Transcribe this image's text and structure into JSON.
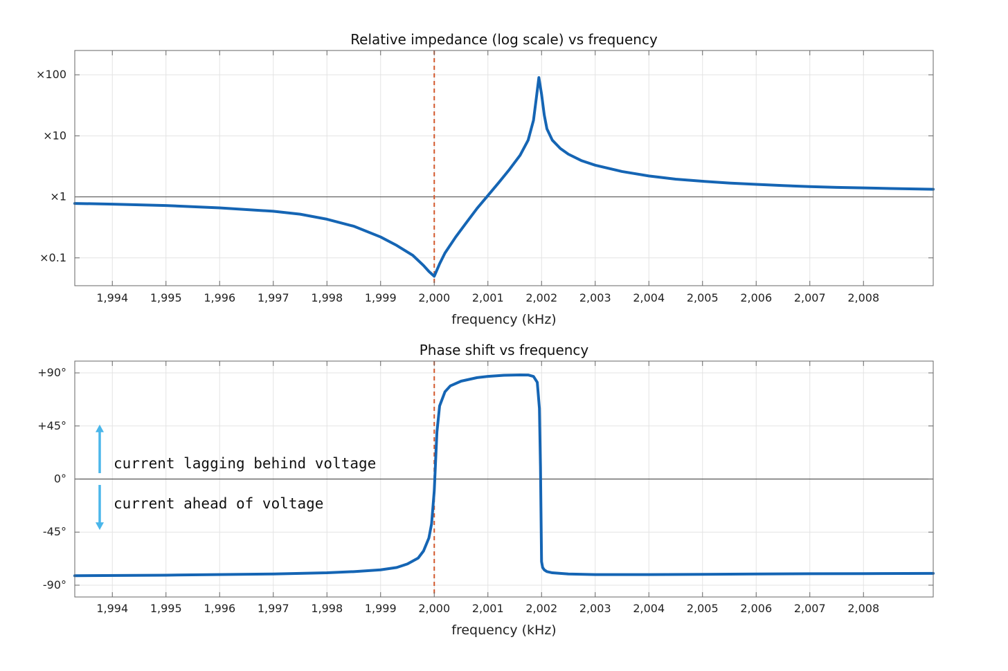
{
  "colors": {
    "series": "#1565b4",
    "reference_line": "#d2572a",
    "arrow": "#4ab6ea",
    "grid": "#e3e3e3",
    "zero_line": "#555555",
    "axes": "#666666"
  },
  "chart_data": [
    {
      "type": "line",
      "title": "Relative impedance (log scale) vs frequency",
      "xlabel": "frequency (kHz)",
      "ylabel": "",
      "y_scale": "log",
      "xlim": [
        1993.3,
        2009.3
      ],
      "ylim": [
        0.035,
        250
      ],
      "x_ticks": [
        1994,
        1995,
        1996,
        1997,
        1998,
        1999,
        2000,
        2001,
        2002,
        2003,
        2004,
        2005,
        2006,
        2007,
        2008
      ],
      "x_tick_labels": [
        "1,994",
        "1,995",
        "1,996",
        "1,997",
        "1,998",
        "1,999",
        "2,000",
        "2,001",
        "2,002",
        "2,003",
        "2,004",
        "2,005",
        "2,006",
        "2,007",
        "2,008"
      ],
      "y_ticks": [
        0.1,
        1,
        10,
        100
      ],
      "y_tick_labels": [
        "×0.1",
        "×1",
        "×10",
        "×100"
      ],
      "grid": true,
      "reference_x": 2000,
      "baseline_y": 1,
      "series": [
        {
          "x": [
            1993.3,
            1994,
            1995,
            1996,
            1997,
            1997.5,
            1998,
            1998.5,
            1999,
            1999.3,
            1999.6,
            1999.8,
            1999.9,
            2000,
            2000.1,
            2000.2,
            2000.4,
            2000.6,
            2000.8,
            2001,
            2001.2,
            2001.4,
            2001.6,
            2001.75,
            2001.85,
            2001.9,
            2001.95,
            2002,
            2002.05,
            2002.1,
            2002.2,
            2002.35,
            2002.5,
            2002.75,
            2003,
            2003.5,
            2004,
            2004.5,
            2005,
            2005.5,
            2006,
            2006.5,
            2007,
            2007.5,
            2008,
            2008.5,
            2009.3
          ],
          "y": [
            0.78,
            0.76,
            0.72,
            0.66,
            0.58,
            0.52,
            0.43,
            0.33,
            0.22,
            0.16,
            0.11,
            0.075,
            0.06,
            0.05,
            0.08,
            0.12,
            0.22,
            0.38,
            0.65,
            1.05,
            1.7,
            2.8,
            4.8,
            8.5,
            18,
            40,
            90,
            48,
            22,
            13,
            8.5,
            6.2,
            5.0,
            3.9,
            3.3,
            2.6,
            2.2,
            1.95,
            1.8,
            1.68,
            1.6,
            1.53,
            1.47,
            1.43,
            1.4,
            1.37,
            1.33
          ]
        }
      ]
    },
    {
      "type": "line",
      "title": "Phase shift vs frequency",
      "xlabel": "frequency (kHz)",
      "ylabel": "",
      "xlim": [
        1993.3,
        2009.3
      ],
      "ylim": [
        -100,
        100
      ],
      "x_ticks": [
        1994,
        1995,
        1996,
        1997,
        1998,
        1999,
        2000,
        2001,
        2002,
        2003,
        2004,
        2005,
        2006,
        2007,
        2008
      ],
      "x_tick_labels": [
        "1,994",
        "1,995",
        "1,996",
        "1,997",
        "1,998",
        "1,999",
        "2,000",
        "2,001",
        "2,002",
        "2,003",
        "2,004",
        "2,005",
        "2,006",
        "2,007",
        "2,008"
      ],
      "y_ticks": [
        -90,
        -45,
        0,
        45,
        90
      ],
      "y_tick_labels": [
        "-90°",
        "-45°",
        "0°",
        "+45°",
        "+90°"
      ],
      "grid": true,
      "reference_x": 2000,
      "baseline_y": 0,
      "annotations": [
        {
          "text": "current lagging behind voltage",
          "arrow": "up",
          "y_from": 5,
          "y_to": 45
        },
        {
          "text": "current ahead of voltage",
          "arrow": "down",
          "y_from": -5,
          "y_to": -42
        }
      ],
      "series": [
        {
          "x": [
            1993.3,
            1995,
            1997,
            1998,
            1998.5,
            1999,
            1999.3,
            1999.5,
            1999.7,
            1999.8,
            1999.9,
            1999.95,
            2000,
            2000.05,
            2000.1,
            2000.2,
            2000.3,
            2000.5,
            2000.8,
            2001,
            2001.3,
            2001.6,
            2001.75,
            2001.85,
            2001.92,
            2001.96,
            2001.98,
            2002,
            2002.02,
            2002.05,
            2002.1,
            2002.2,
            2002.5,
            2003,
            2004,
            2005,
            2006,
            2007,
            2008,
            2009.3
          ],
          "y": [
            -82,
            -81.5,
            -80.5,
            -79.5,
            -78.5,
            -77,
            -75,
            -72,
            -67,
            -61,
            -50,
            -38,
            -10,
            40,
            62,
            74,
            79,
            83,
            86,
            87,
            88,
            88.3,
            88.2,
            87,
            82,
            60,
            10,
            -70,
            -75,
            -77,
            -78.5,
            -79.5,
            -80.5,
            -81,
            -81,
            -80.8,
            -80.5,
            -80.3,
            -80.2,
            -80
          ]
        }
      ]
    }
  ]
}
